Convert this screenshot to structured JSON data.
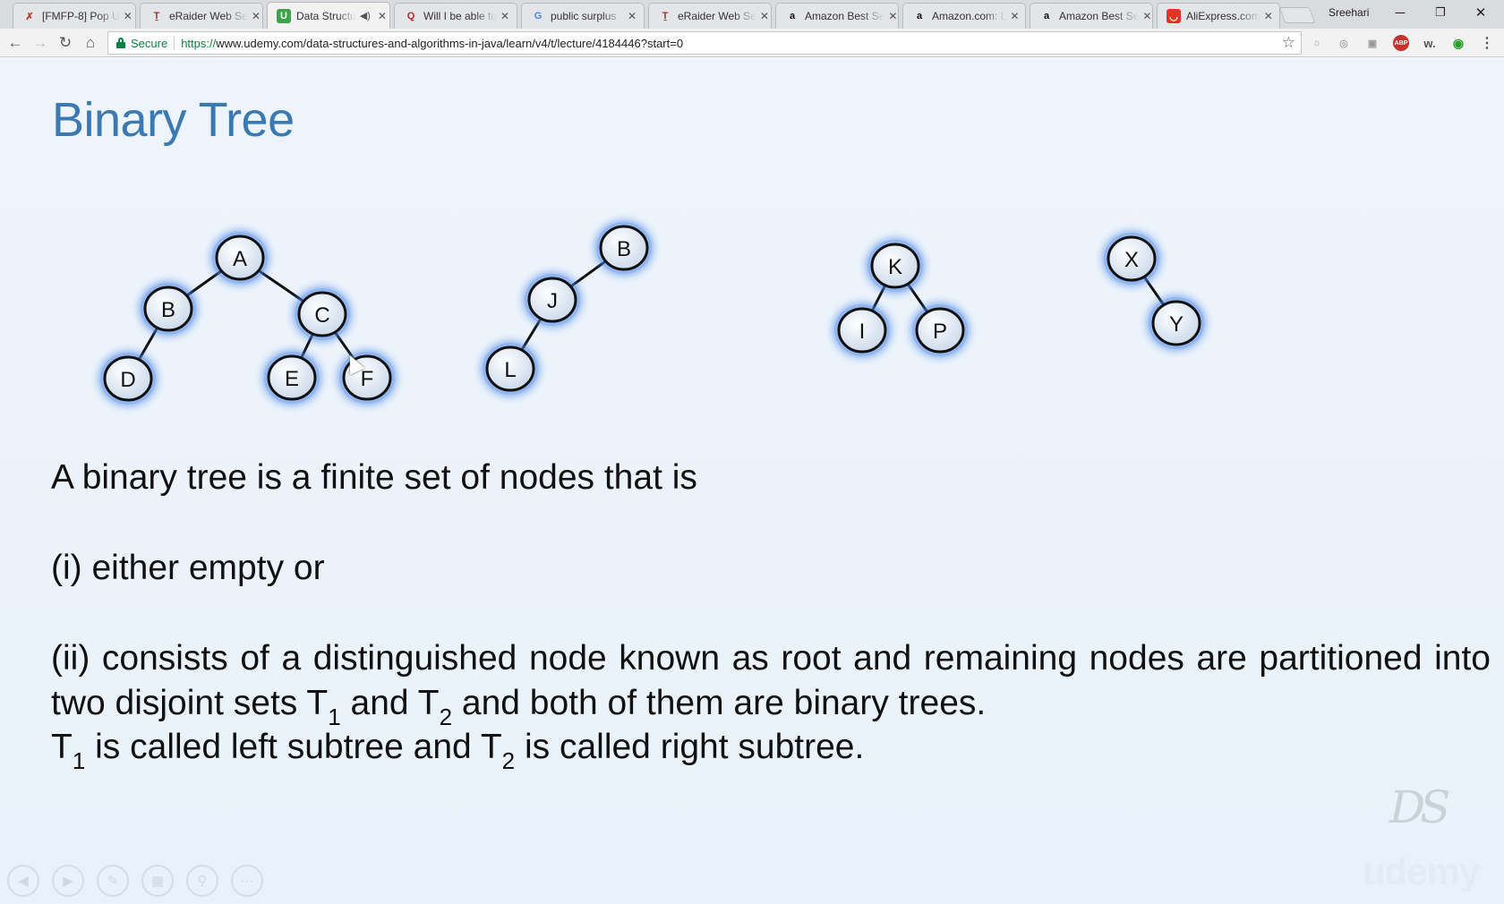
{
  "browser": {
    "tabs": [
      {
        "favicon": "wrench-icon",
        "favicon_color": "#c0392b",
        "title": "[FMFP-8] Pop U"
      },
      {
        "favicon": "ttu-icon",
        "favicon_color": "#a33",
        "title": "eRaider Web Se"
      },
      {
        "favicon": "udemy-icon",
        "favicon_color": "#3ea34a",
        "title": "Data Structu",
        "active": true,
        "audio": true
      },
      {
        "favicon": "quora-icon",
        "favicon_color": "#b92b27",
        "title": "Will I be able to"
      },
      {
        "favicon": "google-icon",
        "favicon_color": "#4285f4",
        "title": "public surplus"
      },
      {
        "favicon": "ttu-icon",
        "favicon_color": "#a33",
        "title": "eRaider Web Se"
      },
      {
        "favicon": "amazon-icon",
        "favicon_color": "#111",
        "title": "Amazon Best Se"
      },
      {
        "favicon": "amazon-icon",
        "favicon_color": "#111",
        "title": "Amazon.com: L"
      },
      {
        "favicon": "amazon-icon",
        "favicon_color": "#111",
        "title": "Amazon Best Se"
      },
      {
        "favicon": "aliexpress-icon",
        "favicon_color": "#e43225",
        "title": "AliExpress.com"
      }
    ],
    "profile_name": "Sreehari",
    "address": {
      "secure_label": "Secure",
      "scheme": "https://",
      "url_rest": "www.udemy.com/data-structures-and-algorithms-in-java/learn/v4/t/lecture/4184446?start=0"
    }
  },
  "slide": {
    "title": "Binary Tree",
    "definition_intro": "A binary tree is a finite set of nodes that is",
    "case_i": "(i) either empty or",
    "case_ii_part1": "(ii) consists of a distinguished node known as root and remaining nodes are partitioned into two disjoint sets T",
    "sub_1": "1",
    "case_ii_and": " and T",
    "sub_2": "2",
    "case_ii_end": " and both of them are binary trees.",
    "line3_t": "T",
    "line3_sub1": "1",
    "line3_mid": " is called left subtree and T",
    "line3_sub2": "2",
    "line3_end": " is called right subtree.",
    "logo_text": "DS",
    "watermark": "udemy"
  },
  "trees": [
    {
      "name": "tree-1",
      "nodes": [
        "A",
        "B",
        "C",
        "D",
        "E",
        "F"
      ],
      "edges": [
        [
          "A",
          "B"
        ],
        [
          "A",
          "C"
        ],
        [
          "B",
          "D"
        ],
        [
          "C",
          "E"
        ],
        [
          "C",
          "F"
        ]
      ]
    },
    {
      "name": "tree-2",
      "nodes": [
        "B",
        "J",
        "L"
      ],
      "edges": [
        [
          "B",
          "J"
        ],
        [
          "J",
          "L"
        ]
      ]
    },
    {
      "name": "tree-3",
      "nodes": [
        "K",
        "I",
        "P"
      ],
      "edges": [
        [
          "K",
          "I"
        ],
        [
          "K",
          "P"
        ]
      ]
    },
    {
      "name": "tree-4",
      "nodes": [
        "X",
        "Y"
      ],
      "edges": [
        [
          "X",
          "Y"
        ]
      ]
    }
  ],
  "colors": {
    "title": "#3a79b2",
    "node_fill": "#e4ecf5",
    "node_glow": "#4a86e8"
  }
}
